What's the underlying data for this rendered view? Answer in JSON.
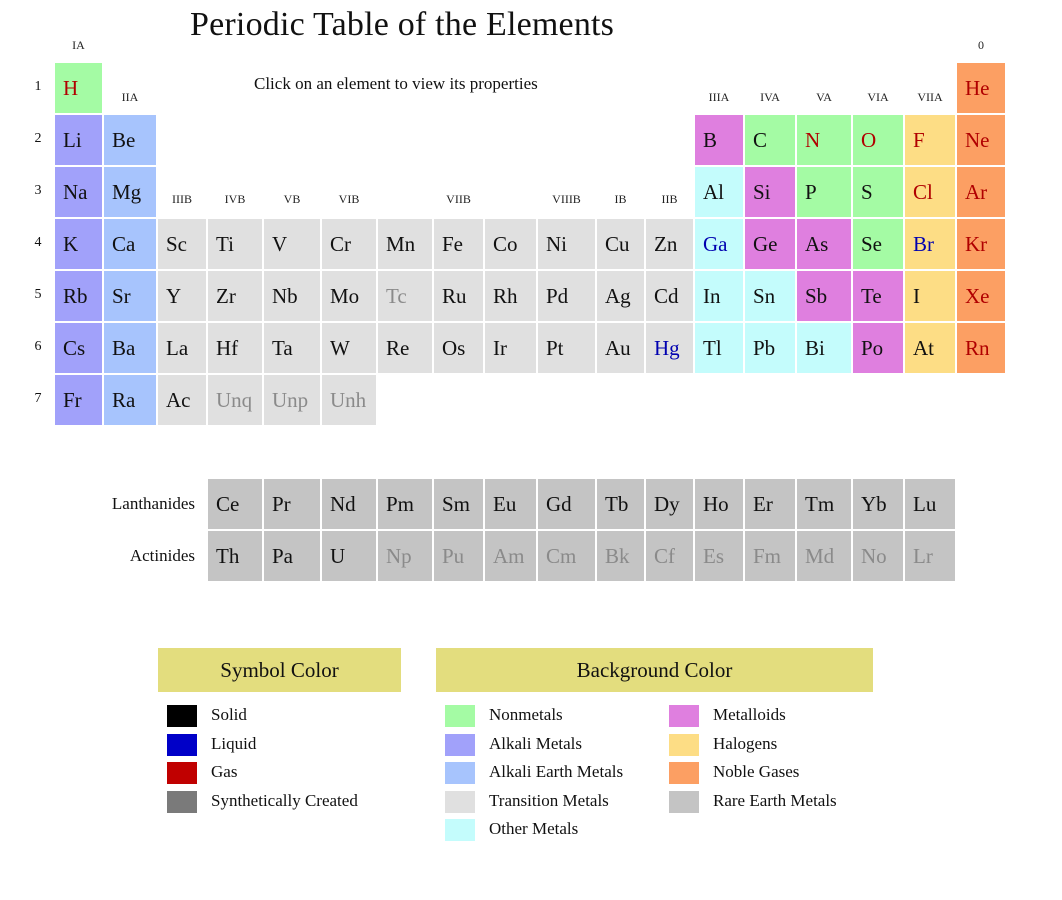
{
  "title": "Periodic Table of the Elements",
  "subtitle": "Click on an element to view its properties",
  "category_colors": {
    "nonmetal": "#a4fba4",
    "alkali": "#a1a1fa",
    "alkaline_earth": "#a7c4fd",
    "transition": "#e0e0e0",
    "other_metal": "#c4fcfc",
    "metalloid": "#df7fdf",
    "halogen": "#fddd85",
    "noble": "#fc9f63",
    "rare_earth": "#c4c4c4"
  },
  "state_colors": {
    "solid": "#111111",
    "liquid": "#0000b0",
    "gas": "#b00000",
    "synthetic": "#8a8a8a"
  },
  "group_labels": [
    {
      "text": "IA",
      "col": 1,
      "row": 0
    },
    {
      "text": "IIA",
      "col": 2,
      "row": 1
    },
    {
      "text": "IIIB",
      "col": 3,
      "row": 2
    },
    {
      "text": "IVB",
      "col": 4,
      "row": 2
    },
    {
      "text": "VB",
      "col": 5,
      "row": 2
    },
    {
      "text": "VIB",
      "col": 6,
      "row": 2
    },
    {
      "text": "VIIB",
      "col": 8,
      "row": 2
    },
    {
      "text": "VIIIB",
      "col": 10,
      "row": 2
    },
    {
      "text": "IB",
      "col": 11,
      "row": 2
    },
    {
      "text": "IIB",
      "col": 12,
      "row": 2
    },
    {
      "text": "IIIA",
      "col": 13,
      "row": 1
    },
    {
      "text": "IVA",
      "col": 14,
      "row": 1
    },
    {
      "text": "VA",
      "col": 15,
      "row": 1
    },
    {
      "text": "VIA",
      "col": 16,
      "row": 1
    },
    {
      "text": "VIIA",
      "col": 17,
      "row": 1
    },
    {
      "text": "0",
      "col": 18,
      "row": 0
    }
  ],
  "periods": [
    "1",
    "2",
    "3",
    "4",
    "5",
    "6",
    "7"
  ],
  "elements": [
    {
      "sym": "H",
      "row": 1,
      "col": 1,
      "cat": "nonmetal",
      "state": "gas"
    },
    {
      "sym": "He",
      "row": 1,
      "col": 18,
      "cat": "noble",
      "state": "gas"
    },
    {
      "sym": "Li",
      "row": 2,
      "col": 1,
      "cat": "alkali",
      "state": "solid"
    },
    {
      "sym": "Be",
      "row": 2,
      "col": 2,
      "cat": "alkaline_earth",
      "state": "solid"
    },
    {
      "sym": "B",
      "row": 2,
      "col": 13,
      "cat": "metalloid",
      "state": "solid"
    },
    {
      "sym": "C",
      "row": 2,
      "col": 14,
      "cat": "nonmetal",
      "state": "solid"
    },
    {
      "sym": "N",
      "row": 2,
      "col": 15,
      "cat": "nonmetal",
      "state": "gas"
    },
    {
      "sym": "O",
      "row": 2,
      "col": 16,
      "cat": "nonmetal",
      "state": "gas"
    },
    {
      "sym": "F",
      "row": 2,
      "col": 17,
      "cat": "halogen",
      "state": "gas"
    },
    {
      "sym": "Ne",
      "row": 2,
      "col": 18,
      "cat": "noble",
      "state": "gas"
    },
    {
      "sym": "Na",
      "row": 3,
      "col": 1,
      "cat": "alkali",
      "state": "solid"
    },
    {
      "sym": "Mg",
      "row": 3,
      "col": 2,
      "cat": "alkaline_earth",
      "state": "solid"
    },
    {
      "sym": "Al",
      "row": 3,
      "col": 13,
      "cat": "other_metal",
      "state": "solid"
    },
    {
      "sym": "Si",
      "row": 3,
      "col": 14,
      "cat": "metalloid",
      "state": "solid"
    },
    {
      "sym": "P",
      "row": 3,
      "col": 15,
      "cat": "nonmetal",
      "state": "solid"
    },
    {
      "sym": "S",
      "row": 3,
      "col": 16,
      "cat": "nonmetal",
      "state": "solid"
    },
    {
      "sym": "Cl",
      "row": 3,
      "col": 17,
      "cat": "halogen",
      "state": "gas"
    },
    {
      "sym": "Ar",
      "row": 3,
      "col": 18,
      "cat": "noble",
      "state": "gas"
    },
    {
      "sym": "K",
      "row": 4,
      "col": 1,
      "cat": "alkali",
      "state": "solid"
    },
    {
      "sym": "Ca",
      "row": 4,
      "col": 2,
      "cat": "alkaline_earth",
      "state": "solid"
    },
    {
      "sym": "Sc",
      "row": 4,
      "col": 3,
      "cat": "transition",
      "state": "solid"
    },
    {
      "sym": "Ti",
      "row": 4,
      "col": 4,
      "cat": "transition",
      "state": "solid"
    },
    {
      "sym": "V",
      "row": 4,
      "col": 5,
      "cat": "transition",
      "state": "solid"
    },
    {
      "sym": "Cr",
      "row": 4,
      "col": 6,
      "cat": "transition",
      "state": "solid"
    },
    {
      "sym": "Mn",
      "row": 4,
      "col": 7,
      "cat": "transition",
      "state": "solid"
    },
    {
      "sym": "Fe",
      "row": 4,
      "col": 8,
      "cat": "transition",
      "state": "solid"
    },
    {
      "sym": "Co",
      "row": 4,
      "col": 9,
      "cat": "transition",
      "state": "solid"
    },
    {
      "sym": "Ni",
      "row": 4,
      "col": 10,
      "cat": "transition",
      "state": "solid"
    },
    {
      "sym": "Cu",
      "row": 4,
      "col": 11,
      "cat": "transition",
      "state": "solid"
    },
    {
      "sym": "Zn",
      "row": 4,
      "col": 12,
      "cat": "transition",
      "state": "solid"
    },
    {
      "sym": "Ga",
      "row": 4,
      "col": 13,
      "cat": "other_metal",
      "state": "liquid"
    },
    {
      "sym": "Ge",
      "row": 4,
      "col": 14,
      "cat": "metalloid",
      "state": "solid"
    },
    {
      "sym": "As",
      "row": 4,
      "col": 15,
      "cat": "metalloid",
      "state": "solid"
    },
    {
      "sym": "Se",
      "row": 4,
      "col": 16,
      "cat": "nonmetal",
      "state": "solid"
    },
    {
      "sym": "Br",
      "row": 4,
      "col": 17,
      "cat": "halogen",
      "state": "liquid"
    },
    {
      "sym": "Kr",
      "row": 4,
      "col": 18,
      "cat": "noble",
      "state": "gas"
    },
    {
      "sym": "Rb",
      "row": 5,
      "col": 1,
      "cat": "alkali",
      "state": "solid"
    },
    {
      "sym": "Sr",
      "row": 5,
      "col": 2,
      "cat": "alkaline_earth",
      "state": "solid"
    },
    {
      "sym": "Y",
      "row": 5,
      "col": 3,
      "cat": "transition",
      "state": "solid"
    },
    {
      "sym": "Zr",
      "row": 5,
      "col": 4,
      "cat": "transition",
      "state": "solid"
    },
    {
      "sym": "Nb",
      "row": 5,
      "col": 5,
      "cat": "transition",
      "state": "solid"
    },
    {
      "sym": "Mo",
      "row": 5,
      "col": 6,
      "cat": "transition",
      "state": "solid"
    },
    {
      "sym": "Tc",
      "row": 5,
      "col": 7,
      "cat": "transition",
      "state": "synthetic"
    },
    {
      "sym": "Ru",
      "row": 5,
      "col": 8,
      "cat": "transition",
      "state": "solid"
    },
    {
      "sym": "Rh",
      "row": 5,
      "col": 9,
      "cat": "transition",
      "state": "solid"
    },
    {
      "sym": "Pd",
      "row": 5,
      "col": 10,
      "cat": "transition",
      "state": "solid"
    },
    {
      "sym": "Ag",
      "row": 5,
      "col": 11,
      "cat": "transition",
      "state": "solid"
    },
    {
      "sym": "Cd",
      "row": 5,
      "col": 12,
      "cat": "transition",
      "state": "solid"
    },
    {
      "sym": "In",
      "row": 5,
      "col": 13,
      "cat": "other_metal",
      "state": "solid"
    },
    {
      "sym": "Sn",
      "row": 5,
      "col": 14,
      "cat": "other_metal",
      "state": "solid"
    },
    {
      "sym": "Sb",
      "row": 5,
      "col": 15,
      "cat": "metalloid",
      "state": "solid"
    },
    {
      "sym": "Te",
      "row": 5,
      "col": 16,
      "cat": "metalloid",
      "state": "solid"
    },
    {
      "sym": "I",
      "row": 5,
      "col": 17,
      "cat": "halogen",
      "state": "solid"
    },
    {
      "sym": "Xe",
      "row": 5,
      "col": 18,
      "cat": "noble",
      "state": "gas"
    },
    {
      "sym": "Cs",
      "row": 6,
      "col": 1,
      "cat": "alkali",
      "state": "solid"
    },
    {
      "sym": "Ba",
      "row": 6,
      "col": 2,
      "cat": "alkaline_earth",
      "state": "solid"
    },
    {
      "sym": "La",
      "row": 6,
      "col": 3,
      "cat": "transition",
      "state": "solid"
    },
    {
      "sym": "Hf",
      "row": 6,
      "col": 4,
      "cat": "transition",
      "state": "solid"
    },
    {
      "sym": "Ta",
      "row": 6,
      "col": 5,
      "cat": "transition",
      "state": "solid"
    },
    {
      "sym": "W",
      "row": 6,
      "col": 6,
      "cat": "transition",
      "state": "solid"
    },
    {
      "sym": "Re",
      "row": 6,
      "col": 7,
      "cat": "transition",
      "state": "solid"
    },
    {
      "sym": "Os",
      "row": 6,
      "col": 8,
      "cat": "transition",
      "state": "solid"
    },
    {
      "sym": "Ir",
      "row": 6,
      "col": 9,
      "cat": "transition",
      "state": "solid"
    },
    {
      "sym": "Pt",
      "row": 6,
      "col": 10,
      "cat": "transition",
      "state": "solid"
    },
    {
      "sym": "Au",
      "row": 6,
      "col": 11,
      "cat": "transition",
      "state": "solid"
    },
    {
      "sym": "Hg",
      "row": 6,
      "col": 12,
      "cat": "transition",
      "state": "liquid"
    },
    {
      "sym": "Tl",
      "row": 6,
      "col": 13,
      "cat": "other_metal",
      "state": "solid"
    },
    {
      "sym": "Pb",
      "row": 6,
      "col": 14,
      "cat": "other_metal",
      "state": "solid"
    },
    {
      "sym": "Bi",
      "row": 6,
      "col": 15,
      "cat": "other_metal",
      "state": "solid"
    },
    {
      "sym": "Po",
      "row": 6,
      "col": 16,
      "cat": "metalloid",
      "state": "solid"
    },
    {
      "sym": "At",
      "row": 6,
      "col": 17,
      "cat": "halogen",
      "state": "solid"
    },
    {
      "sym": "Rn",
      "row": 6,
      "col": 18,
      "cat": "noble",
      "state": "gas"
    },
    {
      "sym": "Fr",
      "row": 7,
      "col": 1,
      "cat": "alkali",
      "state": "solid"
    },
    {
      "sym": "Ra",
      "row": 7,
      "col": 2,
      "cat": "alkaline_earth",
      "state": "solid"
    },
    {
      "sym": "Ac",
      "row": 7,
      "col": 3,
      "cat": "transition",
      "state": "solid"
    },
    {
      "sym": "Unq",
      "row": 7,
      "col": 4,
      "cat": "transition",
      "state": "synthetic"
    },
    {
      "sym": "Unp",
      "row": 7,
      "col": 5,
      "cat": "transition",
      "state": "synthetic"
    },
    {
      "sym": "Unh",
      "row": 7,
      "col": 6,
      "cat": "transition",
      "state": "synthetic"
    }
  ],
  "rare_earth": [
    {
      "label": "Lanthanides",
      "elements": [
        {
          "sym": "Ce",
          "state": "solid"
        },
        {
          "sym": "Pr",
          "state": "solid"
        },
        {
          "sym": "Nd",
          "state": "solid"
        },
        {
          "sym": "Pm",
          "state": "solid"
        },
        {
          "sym": "Sm",
          "state": "solid"
        },
        {
          "sym": "Eu",
          "state": "solid"
        },
        {
          "sym": "Gd",
          "state": "solid"
        },
        {
          "sym": "Tb",
          "state": "solid"
        },
        {
          "sym": "Dy",
          "state": "solid"
        },
        {
          "sym": "Ho",
          "state": "solid"
        },
        {
          "sym": "Er",
          "state": "solid"
        },
        {
          "sym": "Tm",
          "state": "solid"
        },
        {
          "sym": "Yb",
          "state": "solid"
        },
        {
          "sym": "Lu",
          "state": "solid"
        }
      ]
    },
    {
      "label": "Actinides",
      "elements": [
        {
          "sym": "Th",
          "state": "solid"
        },
        {
          "sym": "Pa",
          "state": "solid"
        },
        {
          "sym": "U",
          "state": "solid"
        },
        {
          "sym": "Np",
          "state": "synthetic"
        },
        {
          "sym": "Pu",
          "state": "synthetic"
        },
        {
          "sym": "Am",
          "state": "synthetic"
        },
        {
          "sym": "Cm",
          "state": "synthetic"
        },
        {
          "sym": "Bk",
          "state": "synthetic"
        },
        {
          "sym": "Cf",
          "state": "synthetic"
        },
        {
          "sym": "Es",
          "state": "synthetic"
        },
        {
          "sym": "Fm",
          "state": "synthetic"
        },
        {
          "sym": "Md",
          "state": "synthetic"
        },
        {
          "sym": "No",
          "state": "synthetic"
        },
        {
          "sym": "Lr",
          "state": "synthetic"
        }
      ]
    }
  ],
  "legend": {
    "symbol_title": "Symbol Color",
    "symbol_items": [
      {
        "label": "Solid",
        "color": "#000000"
      },
      {
        "label": "Liquid",
        "color": "#0000c8"
      },
      {
        "label": "Gas",
        "color": "#c00000"
      },
      {
        "label": "Synthetically Created",
        "color": "#7a7a7a"
      }
    ],
    "background_title": "Background Color",
    "background_items": [
      {
        "label": "Nonmetals",
        "color": "#a4fba4"
      },
      {
        "label": "Alkali Metals",
        "color": "#a1a1fa"
      },
      {
        "label": "Alkali Earth Metals",
        "color": "#a7c4fd"
      },
      {
        "label": "Transition Metals",
        "color": "#e0e0e0"
      },
      {
        "label": "Other Metals",
        "color": "#c4fcfc"
      },
      {
        "label": "Metalloids",
        "color": "#df7fdf"
      },
      {
        "label": "Halogens",
        "color": "#fddd85"
      },
      {
        "label": "Noble Gases",
        "color": "#fc9f63"
      },
      {
        "label": "Rare Earth Metals",
        "color": "#c4c4c4"
      }
    ]
  }
}
